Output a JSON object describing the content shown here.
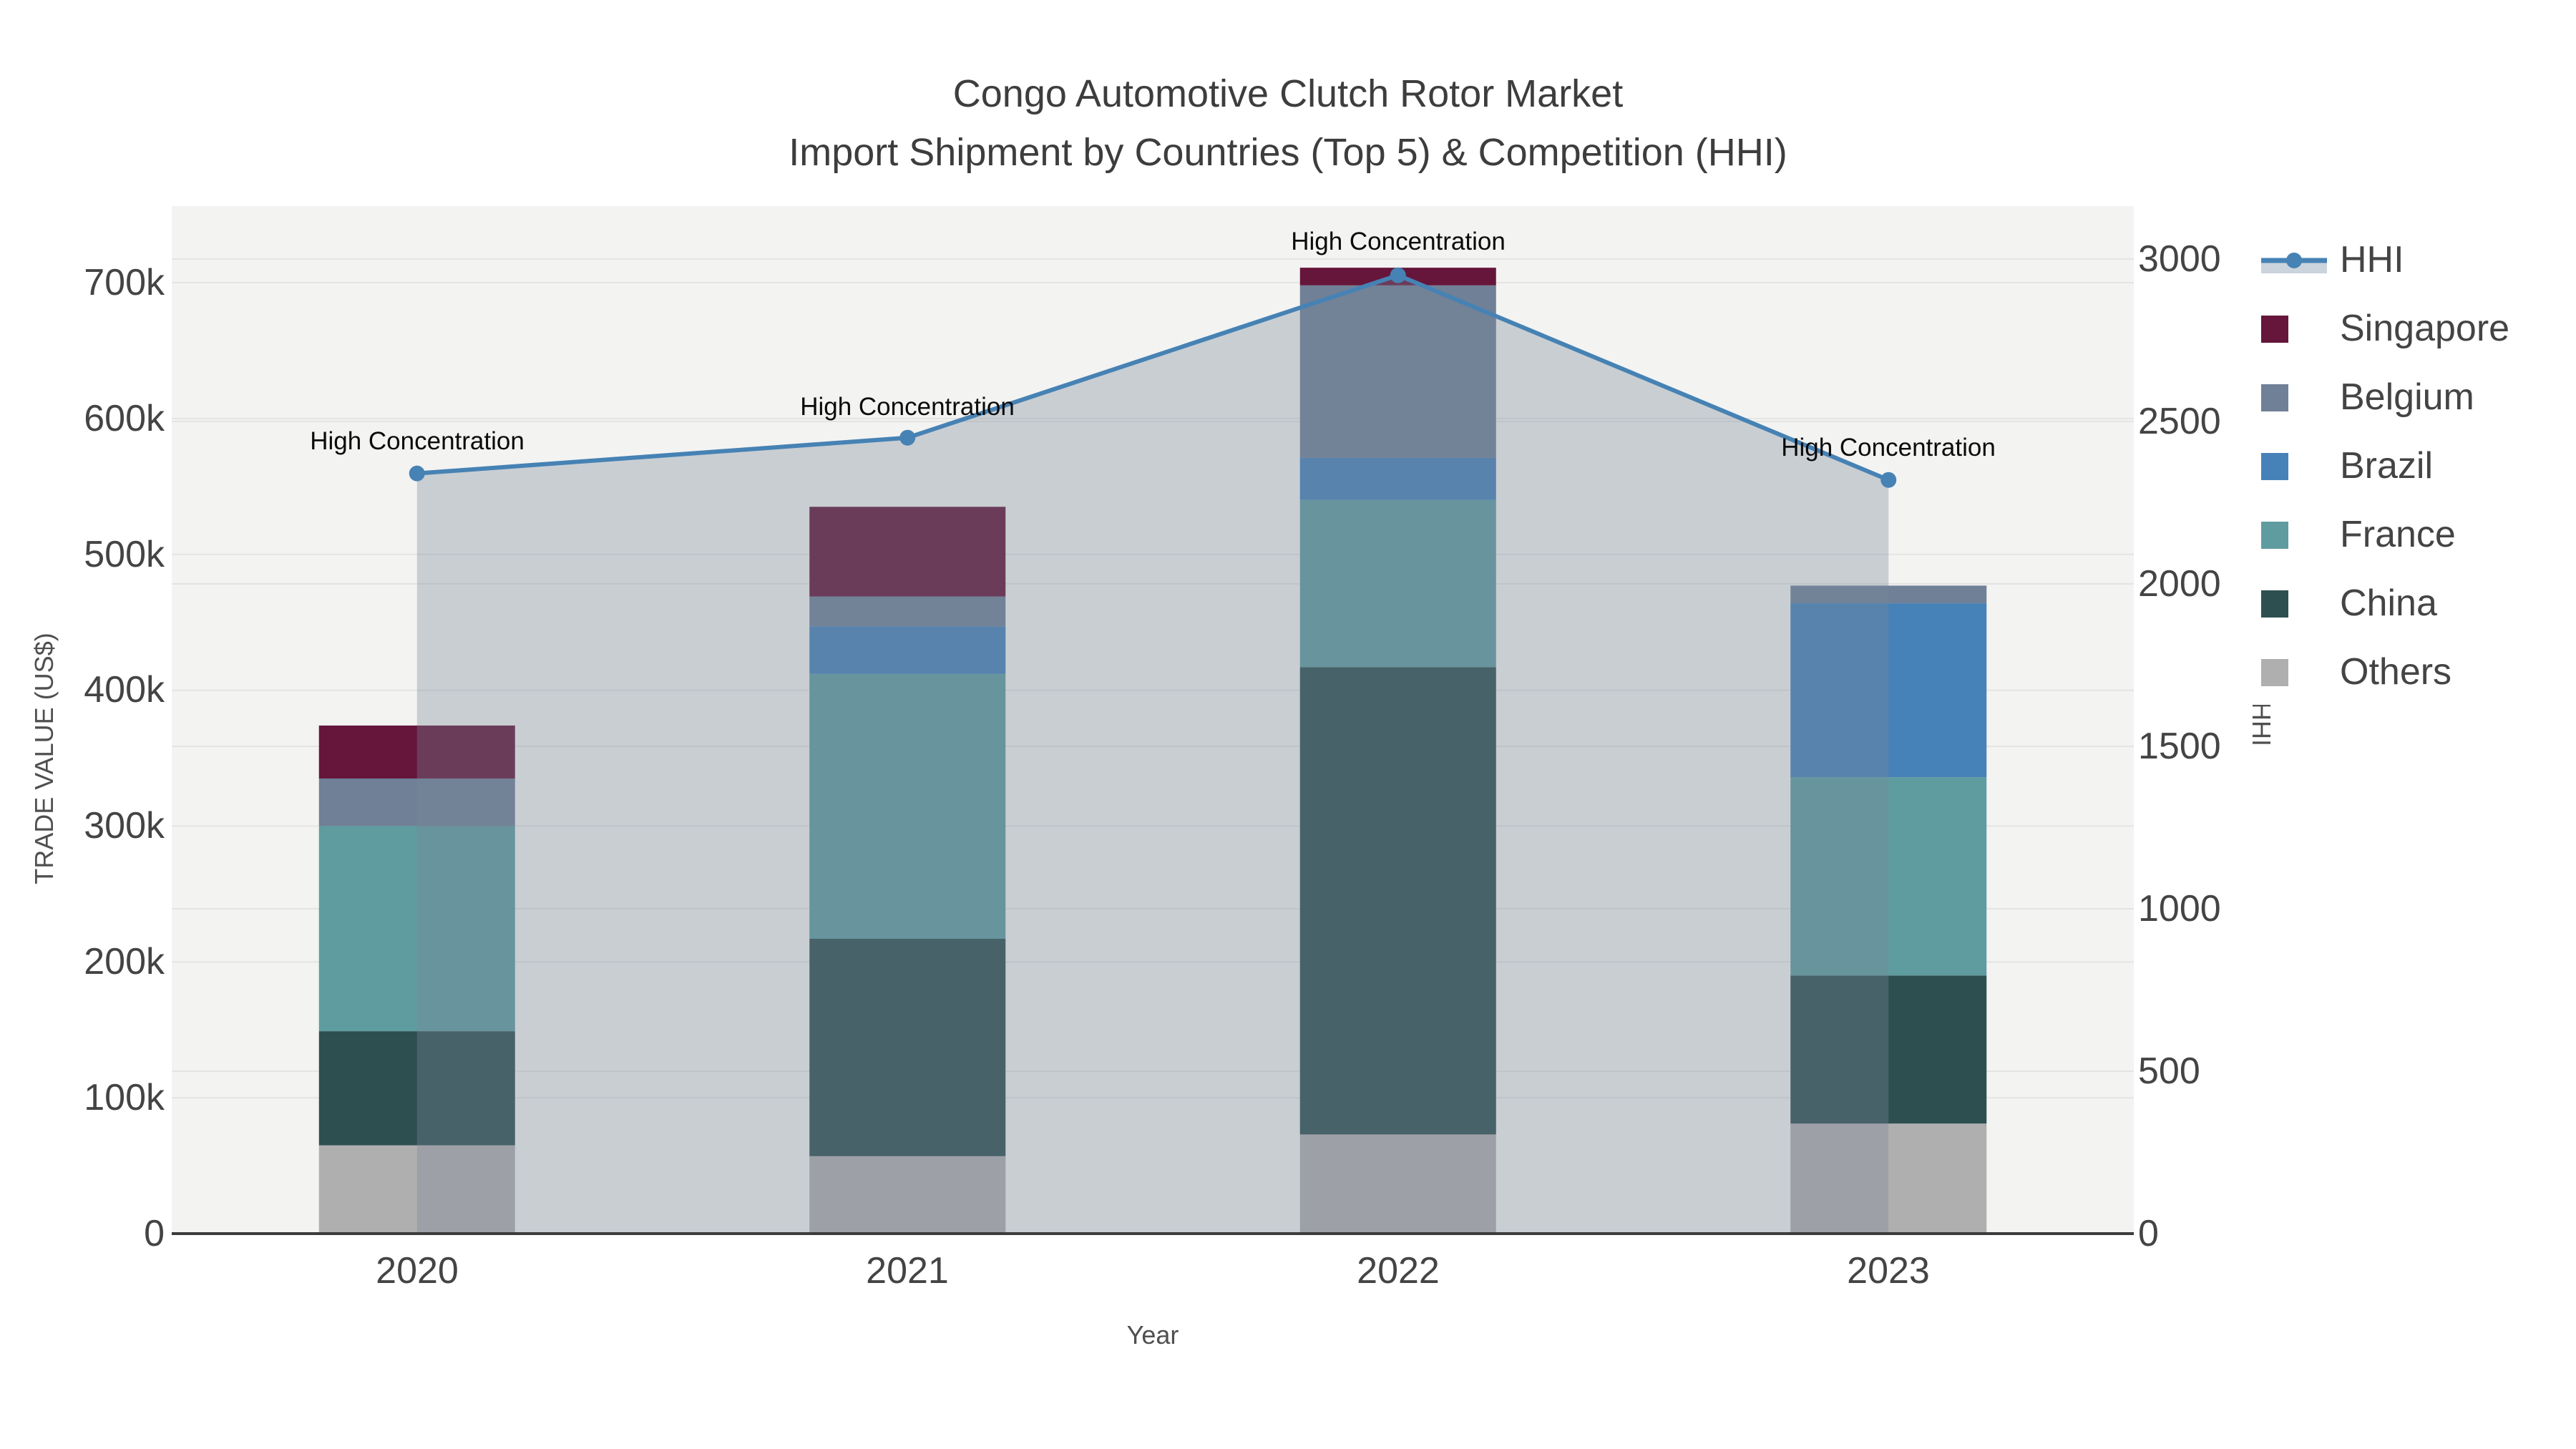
{
  "figure": {
    "title_line1": "Congo Automotive Clutch Rotor Market",
    "title_line2": "Import Shipment by Countries (Top 5) & Competition (HHI)"
  },
  "chart_data": {
    "type": "combo-stacked-bar-line",
    "title": "Congo Automotive Clutch Rotor Market — Import Shipment by Countries (Top 5) & Competition (HHI)",
    "categories": [
      "2020",
      "2021",
      "2022",
      "2023"
    ],
    "x_axis": {
      "label": "Year",
      "tick_labels": [
        "2020",
        "2021",
        "2022",
        "2023"
      ]
    },
    "y_axis_left": {
      "label": "TRADE VALUE (US$)",
      "tick_labels": [
        "0",
        "100k",
        "200k",
        "300k",
        "400k",
        "500k",
        "600k",
        "700k"
      ],
      "tick_values": [
        0,
        100000,
        200000,
        300000,
        400000,
        500000,
        600000,
        700000
      ],
      "range": [
        0,
        755000
      ],
      "grid": true
    },
    "y_axis_right": {
      "label": "HHI",
      "tick_labels": [
        "0",
        "500",
        "1000",
        "1500",
        "2000",
        "2500",
        "3000"
      ],
      "tick_values": [
        0,
        500,
        1000,
        1500,
        2000,
        2500,
        3000
      ],
      "range": [
        0,
        3160
      ],
      "grid": true
    },
    "bar_series": [
      {
        "name": "Others",
        "color": "#B0AFAF",
        "values": [
          65000,
          57000,
          73000,
          81000
        ]
      },
      {
        "name": "China",
        "color": "#2E4F4F",
        "values": [
          84000,
          160000,
          344000,
          109000
        ]
      },
      {
        "name": "France",
        "color": "#5F9CA0",
        "values": [
          151000,
          195000,
          123000,
          146000
        ]
      },
      {
        "name": "Brazil",
        "color": "#4682B8",
        "values": [
          0,
          35000,
          31000,
          128000
        ]
      },
      {
        "name": "Belgium",
        "color": "#708096",
        "values": [
          35000,
          22000,
          127000,
          13000
        ]
      },
      {
        "name": "Singapore",
        "color": "#65163A",
        "values": [
          39000,
          66000,
          13000,
          0
        ]
      }
    ],
    "bar_totals": [
      374000,
      535000,
      711000,
      477000
    ],
    "line_series": {
      "name": "HHI",
      "color": "#4682B4",
      "values": [
        2340,
        2450,
        2950,
        2320
      ]
    },
    "area_fill_color": "rgba(119,136,153,0.34)",
    "legend_band_color": "#CBD3DC",
    "annotations": [
      "High Concentration",
      "High Concentration",
      "High Concentration",
      "High Concentration"
    ],
    "legend": {
      "items": [
        "HHI",
        "Singapore",
        "Belgium",
        "Brazil",
        "France",
        "China",
        "Others"
      ],
      "position": "right"
    },
    "plot_bg": "#F3F3F2",
    "grid_color": "#E4E4E3",
    "axis_line_color": "#3C3C3C"
  }
}
